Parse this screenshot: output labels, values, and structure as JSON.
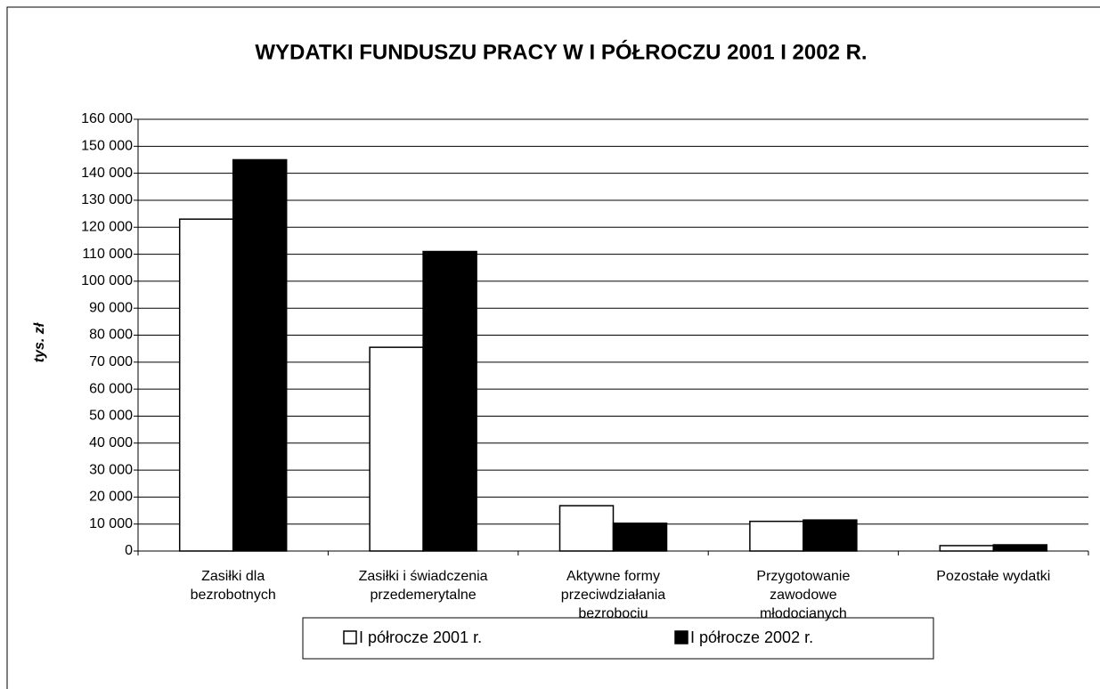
{
  "chart_data": {
    "type": "bar",
    "title": "WYDATKI FUNDUSZU PRACY W  I PÓŁROCZU 2001 I 2002 R.",
    "y_label": "tys. zł",
    "categories": [
      "Zasiłki dla bezrobotnych",
      "Zasiłki i świadczenia przedemerytalne",
      "Aktywne formy przeciwdziałania bezrobociu",
      "Przygotowanie zawodowe młodocianych",
      "Pozostałe wydatki"
    ],
    "series": [
      {
        "name": "I półrocze 2001 r.",
        "color": "#ffffff",
        "values": [
          123000,
          75500,
          16800,
          11000,
          2000
        ]
      },
      {
        "name": "I półrocze 2002 r.",
        "color": "#000000",
        "values": [
          145000,
          111000,
          10300,
          11500,
          2300
        ]
      }
    ],
    "ylim": [
      0,
      160000
    ],
    "yticks": [
      0,
      {
        "value": 10000,
        "label": "10 000"
      },
      {
        "value": 20000,
        "label": "20 000"
      },
      {
        "value": 30000,
        "label": "30 000"
      },
      {
        "value": 40000,
        "label": "40 000"
      },
      {
        "value": 50000,
        "label": "50 000"
      },
      {
        "value": 60000,
        "label": "60 000"
      },
      {
        "value": 70000,
        "label": "70 000"
      },
      {
        "value": 80000,
        "label": "80 000"
      },
      {
        "value": 90000,
        "label": "90 000"
      },
      {
        "value": 100000,
        "label": "100 000"
      },
      {
        "value": 110000,
        "label": "110 000"
      },
      {
        "value": 120000,
        "label": "120 000"
      },
      {
        "value": 130000,
        "label": "130 000"
      },
      {
        "value": 140000,
        "label": "140 000"
      },
      {
        "value": 150000,
        "label": "150 000"
      },
      {
        "value": 160000,
        "label": "160 000"
      }
    ],
    "grid": true
  }
}
